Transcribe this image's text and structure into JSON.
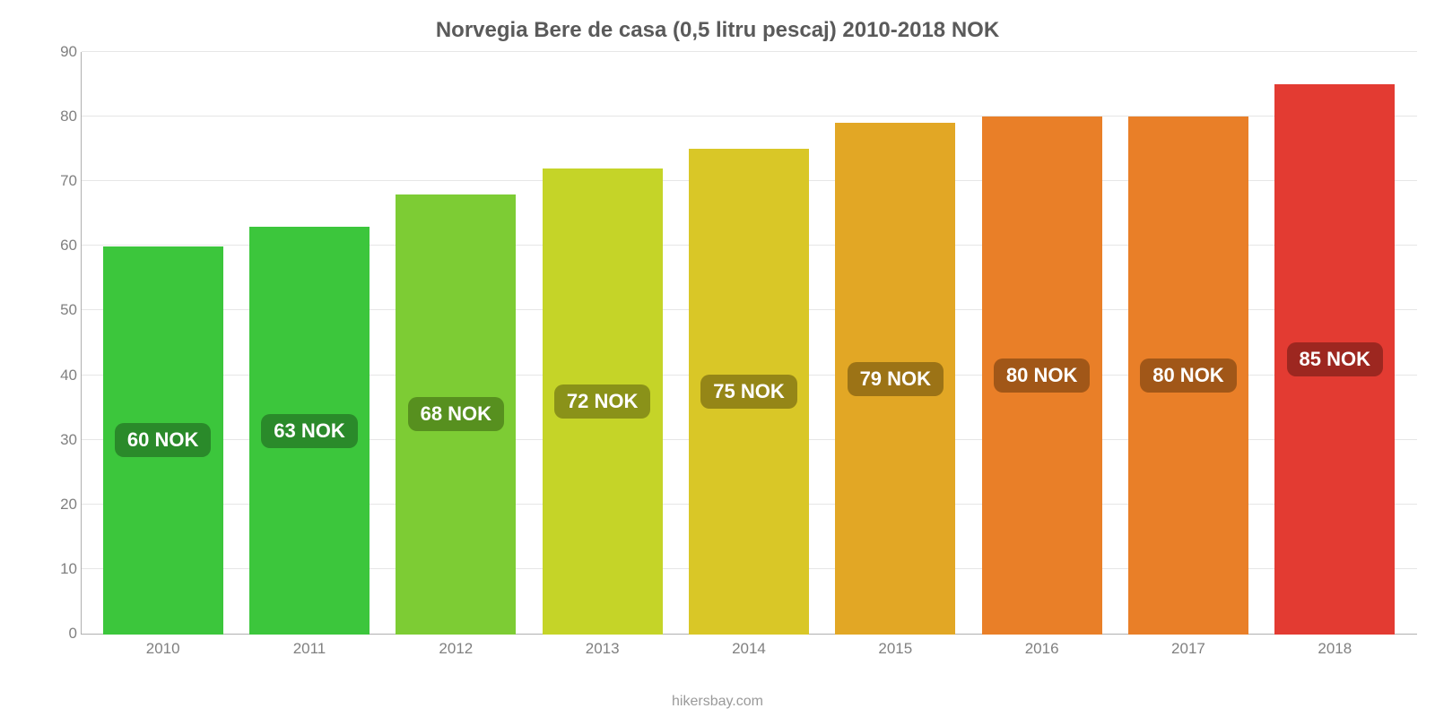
{
  "chart": {
    "type": "bar",
    "title": "Norvegia Bere de casa (0,5 litru pescaj) 2010-2018 NOK",
    "title_fontsize": 24,
    "title_color": "#5a5a5a",
    "categories": [
      "2010",
      "2011",
      "2012",
      "2013",
      "2014",
      "2015",
      "2016",
      "2017",
      "2018"
    ],
    "values": [
      60,
      63,
      68,
      72,
      75,
      79,
      80,
      80,
      85
    ],
    "value_labels": [
      "60 NOK",
      "63 NOK",
      "68 NOK",
      "72 NOK",
      "75 NOK",
      "79 NOK",
      "80 NOK",
      "80 NOK",
      "85 NOK"
    ],
    "bar_colors": [
      "#3cc63c",
      "#3cc63c",
      "#7dcc34",
      "#c5d428",
      "#d9c727",
      "#e2a725",
      "#e97f28",
      "#e97f28",
      "#e33b32"
    ],
    "label_bg_colors": [
      "#2a8a2a",
      "#2a8a2a",
      "#57901f",
      "#8a9219",
      "#958617",
      "#9c7316",
      "#a15718",
      "#a15718",
      "#9d2720"
    ],
    "label_fontsize": 22,
    "ylim": [
      0,
      90
    ],
    "ytick_step": 10,
    "y_ticks": [
      0,
      10,
      20,
      30,
      40,
      50,
      60,
      70,
      80,
      90
    ],
    "axis_label_fontsize": 17,
    "axis_label_color": "#808080",
    "background_color": "#ffffff",
    "grid_color": "#e6e6e6",
    "axis_line_color": "#b0b0b0",
    "bar_width": 0.82,
    "footer": "hikersbay.com",
    "footer_color": "#9a9a9a",
    "footer_fontsize": 16
  }
}
